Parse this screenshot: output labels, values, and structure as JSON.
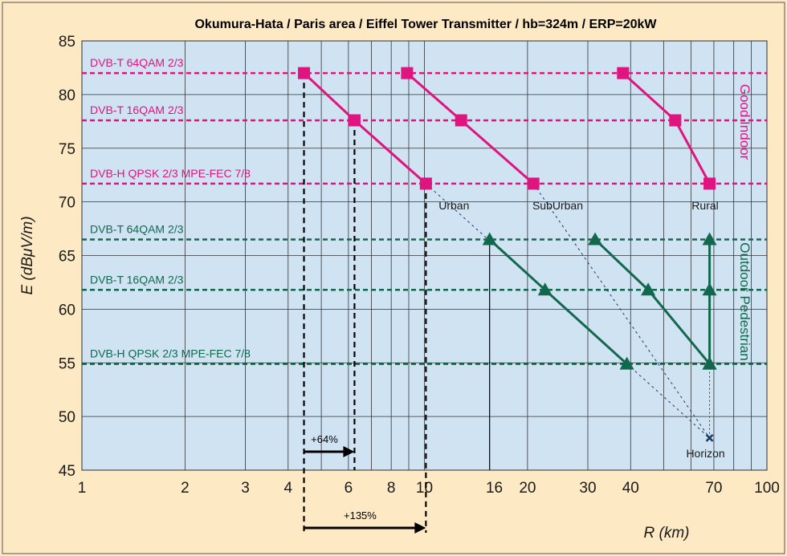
{
  "chart_data": {
    "type": "line",
    "title": "Okumura-Hata / Paris area  / Eiffel Tower Transmitter / hb=324m /  ERP=20kW",
    "xlabel": "R (km)",
    "ylabel": "E (dBμV/m)",
    "xscale": "log",
    "xlim": [
      1,
      100
    ],
    "ylim": [
      45,
      85
    ],
    "xticks": [
      1,
      2,
      3,
      4,
      6,
      8,
      10,
      16,
      20,
      30,
      40,
      70,
      100
    ],
    "yticks": [
      45,
      50,
      55,
      60,
      65,
      70,
      75,
      80,
      85
    ],
    "grid": true,
    "colors": {
      "background": "#fde9c4",
      "plot": "#cfe3f3",
      "good_indoor": "#e0147f",
      "outdoor": "#12684d",
      "grid": "#333333"
    },
    "reference_levels": [
      {
        "label": "DVB-T 64QAM 2/3",
        "y": 82,
        "group": "good_indoor"
      },
      {
        "label": "DVB-T 16QAM 2/3",
        "y": 77.6,
        "group": "good_indoor"
      },
      {
        "label": "DVB-H QPSK 2/3 MPE-FEC 7/8",
        "y": 71.7,
        "group": "good_indoor"
      },
      {
        "label": "DVB-T 64QAM 2/3",
        "y": 66.5,
        "group": "outdoor"
      },
      {
        "label": "DVB-T 16QAM 2/3",
        "y": 61.8,
        "group": "outdoor"
      },
      {
        "label": "DVB-H QPSK 2/3 MPE-FEC 7/8",
        "y": 54.9,
        "group": "outdoor"
      }
    ],
    "series": [
      {
        "group": "good_indoor",
        "marker": "square",
        "x": [
          4.45,
          6.25,
          10.1
        ],
        "y": [
          82,
          77.6,
          71.7
        ]
      },
      {
        "group": "good_indoor",
        "marker": "square",
        "x": [
          8.9,
          12.8,
          20.8
        ],
        "y": [
          82,
          77.6,
          71.7
        ]
      },
      {
        "group": "good_indoor",
        "marker": "square",
        "x": [
          38,
          54,
          68
        ],
        "y": [
          82,
          77.6,
          71.7
        ]
      },
      {
        "group": "outdoor",
        "marker": "triangle",
        "x": [
          15.5,
          22.5,
          39
        ],
        "y": [
          66.5,
          61.8,
          54.9
        ]
      },
      {
        "group": "outdoor",
        "marker": "triangle",
        "x": [
          31.5,
          45,
          68
        ],
        "y": [
          66.5,
          61.8,
          54.9
        ]
      },
      {
        "group": "outdoor",
        "marker": "triangle",
        "x": [
          68,
          68,
          68
        ],
        "y": [
          66.5,
          61.8,
          54.9
        ]
      }
    ],
    "horizon_point": {
      "x": 68,
      "y": 48,
      "label": "Horizon"
    },
    "environment_labels": [
      {
        "text": "Urban",
        "x": 12.2,
        "y": 69.3
      },
      {
        "text": "SubUrban",
        "x": 24.5,
        "y": 69.3
      },
      {
        "text": "Rural",
        "x": 66,
        "y": 69.3
      }
    ],
    "side_labels": {
      "good_indoor": "Good Indoor",
      "outdoor": "Outdoor Pedestrian"
    },
    "annotations": [
      {
        "text": "+64%",
        "from": 4.45,
        "to": 6.25
      },
      {
        "text": "+135%",
        "from": 4.45,
        "to": 10.1
      }
    ]
  }
}
